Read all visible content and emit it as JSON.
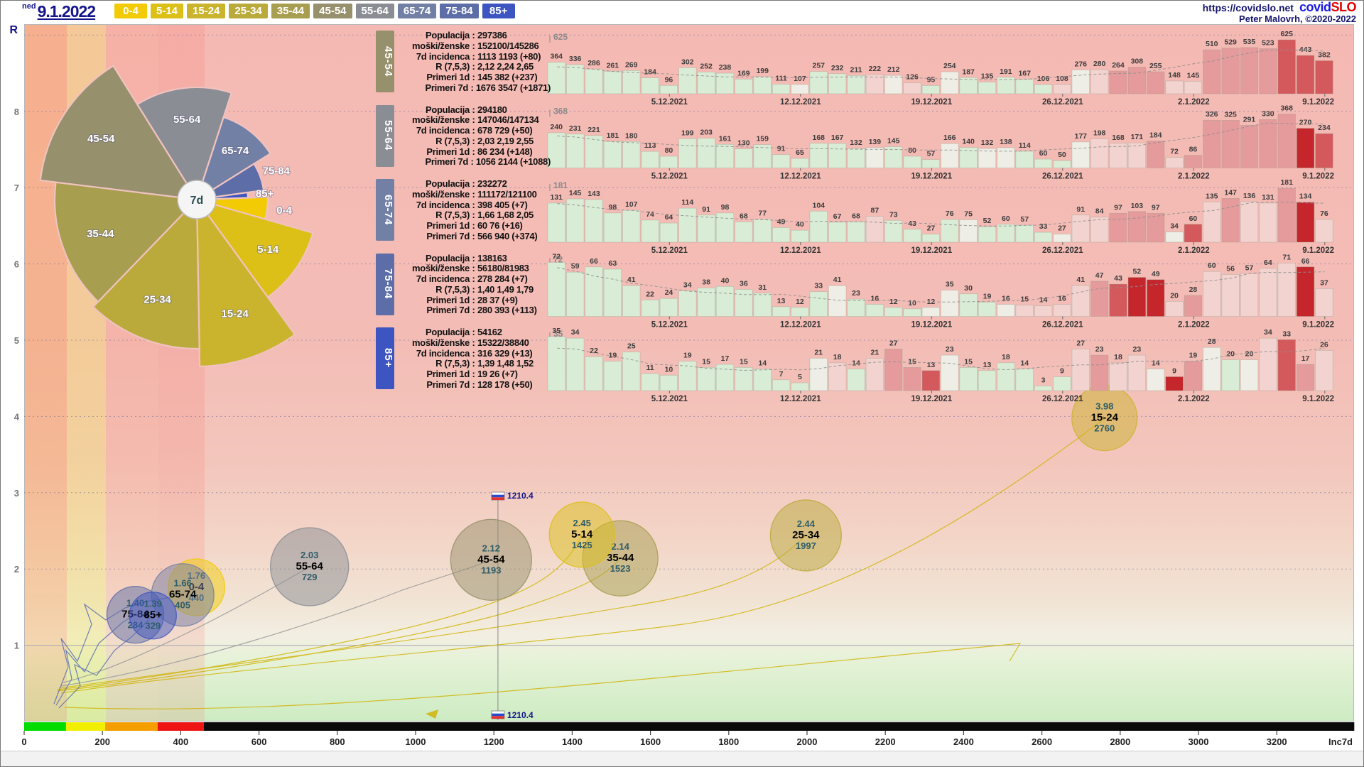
{
  "header": {
    "day_abbrev": "ned",
    "date": "9.1.2022",
    "url": "https://covidslo.net",
    "logo_covid": "covid",
    "logo_slo": "SLO",
    "credit": "Peter Malovrh, ©2020-2022",
    "age_buttons": [
      {
        "label": "0-4",
        "color": "#F2CB05"
      },
      {
        "label": "5-14",
        "color": "#DCBF17"
      },
      {
        "label": "15-24",
        "color": "#CBB42D"
      },
      {
        "label": "25-34",
        "color": "#BAAA3C"
      },
      {
        "label": "35-44",
        "color": "#A89E4F"
      },
      {
        "label": "45-54",
        "color": "#97906C"
      },
      {
        "label": "55-64",
        "color": "#8A8D94"
      },
      {
        "label": "65-74",
        "color": "#7380A5"
      },
      {
        "label": "75-84",
        "color": "#5D6DA8"
      },
      {
        "label": "85+",
        "color": "#3D55C0"
      }
    ]
  },
  "axes": {
    "y_label": "R",
    "y_ticks": [
      8,
      7,
      6,
      5,
      4,
      3,
      2,
      1
    ],
    "x_ticks": [
      0,
      200,
      400,
      600,
      800,
      1000,
      1200,
      1400,
      1600,
      1800,
      2000,
      2200,
      2400,
      2600,
      2800,
      3000,
      3200
    ],
    "x_label": "Inc7d",
    "risk_bar": [
      {
        "color": "#00DB00",
        "to": 107
      },
      {
        "color": "#F2EE00",
        "to": 207
      },
      {
        "color": "#F59E00",
        "to": 341
      },
      {
        "color": "#EE1414",
        "to": 459
      },
      {
        "color": "#0A0A0A",
        "to": 3398
      }
    ]
  },
  "stats_labels": {
    "populacija": "Populacija",
    "moski": "moški/ženske",
    "incidenca": "7d incidenca",
    "r": "R (7,5,3)",
    "primeri1d": "Primeri 1d",
    "primeri7d": "Primeri 7d"
  },
  "panels": [
    {
      "group": "45-54",
      "color": "#97906C",
      "populacija": "297386",
      "moski": "152100/145286",
      "incidenca": "1113 1193 (+80)",
      "r": "2,12 2,24 2,65",
      "primeri1d": "145 382 (+237)",
      "primeri7d": "1676 3547 (+1871)"
    },
    {
      "group": "55-64",
      "color": "#8A8D94",
      "populacija": "294180",
      "moski": "147046/147134",
      "incidenca": "678 729 (+50)",
      "r": "2,03 2,19 2,55",
      "primeri1d": "86 234 (+148)",
      "primeri7d": "1056 2144 (+1088)"
    },
    {
      "group": "65-74",
      "color": "#7380A5",
      "populacija": "232272",
      "moski": "111172/121100",
      "incidenca": "398 405 (+7)",
      "r": "1,66 1,68 2,05",
      "primeri1d": "60 76 (+16)",
      "primeri7d": "566 940 (+374)"
    },
    {
      "group": "75-84",
      "color": "#5D6DA8",
      "populacija": "138163",
      "moski": "56180/81983",
      "incidenca": "278 284 (+7)",
      "r": "1,40 1,49 1,79",
      "primeri1d": "28 37 (+9)",
      "primeri7d": "280 393 (+113)"
    },
    {
      "group": "85+",
      "color": "#3D55C0",
      "populacija": "54162",
      "moski": "15322/38840",
      "incidenca": "316 329 (+13)",
      "r": "1,39 1,48 1,52",
      "primeri1d": "19 26 (+7)",
      "primeri7d": "128 178 (+50)"
    }
  ],
  "chart_data": {
    "bar_charts": [
      {
        "type": "bar",
        "group": "45-54",
        "max": 625,
        "dates": [
          "5.12.2021",
          "12.12.2021",
          "19.12.2021",
          "26.12.2021",
          "2.1.2022",
          "9.1.2022"
        ],
        "date_indices": [
          6,
          13,
          20,
          27,
          34,
          41
        ],
        "values": [
          364,
          336,
          286,
          261,
          269,
          184,
          96,
          302,
          252,
          238,
          169,
          199,
          111,
          107,
          257,
          232,
          211,
          222,
          212,
          126,
          95,
          254,
          187,
          135,
          191,
          167,
          106,
          108,
          276,
          280,
          264,
          308,
          255,
          148,
          145,
          510,
          529,
          535,
          523,
          625,
          443,
          382
        ]
      },
      {
        "type": "bar",
        "group": "55-64",
        "max": 368,
        "dates": [
          "5.12.2021",
          "12.12.2021",
          "19.12.2021",
          "26.12.2021",
          "2.1.2022",
          "9.1.2022"
        ],
        "date_indices": [
          6,
          13,
          20,
          27,
          34,
          41
        ],
        "values": [
          240,
          231,
          221,
          181,
          180,
          113,
          80,
          199,
          203,
          161,
          130,
          159,
          91,
          65,
          168,
          167,
          132,
          139,
          145,
          80,
          57,
          166,
          140,
          132,
          138,
          114,
          60,
          50,
          177,
          198,
          168,
          171,
          184,
          72,
          86,
          326,
          325,
          291,
          330,
          368,
          270,
          234
        ]
      },
      {
        "type": "bar",
        "group": "65-74",
        "max": 181,
        "dates": [
          "5.12.2021",
          "12.12.2021",
          "19.12.2021",
          "26.12.2021",
          "2.1.2022",
          "9.1.2022"
        ],
        "date_indices": [
          6,
          13,
          20,
          27,
          34,
          41
        ],
        "values": [
          131,
          145,
          143,
          98,
          107,
          74,
          64,
          114,
          91,
          98,
          68,
          77,
          49,
          40,
          104,
          67,
          68,
          87,
          73,
          43,
          27,
          76,
          75,
          52,
          60,
          57,
          33,
          27,
          91,
          84,
          97,
          103,
          97,
          34,
          60,
          135,
          147,
          136,
          131,
          181,
          134,
          76
        ]
      },
      {
        "type": "bar",
        "group": "75-84",
        "max": 72,
        "dates": [
          "5.12.2021",
          "12.12.2021",
          "19.12.2021",
          "26.12.2021",
          "2.1.2022",
          "9.1.2022"
        ],
        "date_indices": [
          6,
          13,
          20,
          27,
          34,
          41
        ],
        "values": [
          72,
          59,
          66,
          63,
          41,
          22,
          24,
          34,
          38,
          40,
          36,
          31,
          13,
          12,
          33,
          41,
          23,
          16,
          12,
          10,
          12,
          35,
          30,
          19,
          16,
          15,
          14,
          16,
          41,
          47,
          43,
          52,
          49,
          20,
          28,
          60,
          56,
          57,
          64,
          71,
          66,
          37
        ]
      },
      {
        "type": "bar",
        "group": "85+",
        "max": 35,
        "dates": [
          "5.12.2021",
          "12.12.2021",
          "19.12.2021",
          "26.12.2021",
          "2.1.2022",
          "9.1.2022"
        ],
        "date_indices": [
          6,
          13,
          20,
          27,
          34,
          41
        ],
        "values": [
          35,
          34,
          22,
          19,
          25,
          11,
          10,
          19,
          15,
          17,
          15,
          14,
          7,
          5,
          21,
          18,
          14,
          21,
          27,
          15,
          13,
          23,
          15,
          13,
          18,
          14,
          3,
          9,
          27,
          23,
          18,
          23,
          14,
          9,
          19,
          28,
          20,
          20,
          34,
          33,
          17,
          26
        ]
      }
    ],
    "rose": {
      "type": "pie",
      "center_label": "7d",
      "slices": [
        {
          "group": "0-4",
          "a0": -2,
          "a1": 16,
          "radius": 100
        },
        {
          "group": "5-14",
          "a0": 16,
          "a1": 54,
          "radius": 170
        },
        {
          "group": "15-24",
          "a0": 54,
          "a1": 89,
          "radius": 235
        },
        {
          "group": "25-34",
          "a0": 89,
          "a1": 134,
          "radius": 210
        },
        {
          "group": "35-44",
          "a0": 134,
          "a1": 187,
          "radius": 200
        },
        {
          "group": "45-54",
          "a0": 187,
          "a1": 238,
          "radius": 222
        },
        {
          "group": "55-64",
          "a0": 238,
          "a1": 288,
          "radius": 158
        },
        {
          "group": "65-74",
          "a0": 288,
          "a1": 328,
          "radius": 122
        },
        {
          "group": "75-84",
          "a0": 328,
          "a1": 352,
          "radius": 95
        },
        {
          "group": "85+",
          "a0": 352,
          "a1": 358,
          "radius": 72
        }
      ]
    },
    "scatter": {
      "type": "scatter",
      "xlabel": "Inc7d",
      "ylabel": "R",
      "xlim": [
        0,
        3400
      ],
      "ylim": [
        0,
        9.1
      ],
      "bubbles": [
        {
          "group": "35-44",
          "r_label": "2.14",
          "inc_label": "1523",
          "R": 2.14,
          "incidence": 1523,
          "radius": 53
        },
        {
          "group": "25-34",
          "r_label": "2.44",
          "inc_label": "1997",
          "R": 2.44,
          "incidence": 1997,
          "radius": 50
        },
        {
          "group": "15-24",
          "r_label": "3.98",
          "inc_label": "2760",
          "R": 3.98,
          "incidence": 2760,
          "radius": 46
        },
        {
          "group": "5-14",
          "r_label": "2.45",
          "inc_label": "1425",
          "R": 2.45,
          "incidence": 1425,
          "radius": 46
        },
        {
          "group": "55-64",
          "r_label": "2.03",
          "inc_label": "729",
          "R": 2.03,
          "incidence": 729,
          "radius": 55
        },
        {
          "group": "45-54",
          "r_label": "2.12",
          "inc_label": "1193",
          "R": 2.12,
          "incidence": 1193,
          "radius": 57
        },
        {
          "group": "0-4",
          "r_label": "1.76",
          "inc_label": "440",
          "R": 1.76,
          "incidence": 440,
          "radius": 40
        },
        {
          "group": "65-74",
          "r_label": "1.66",
          "inc_label": "405",
          "R": 1.66,
          "incidence": 405,
          "radius": 44
        },
        {
          "group": "75-84",
          "r_label": "1.40",
          "inc_label": "284",
          "R": 1.4,
          "incidence": 284,
          "radius": 40
        },
        {
          "group": "85+",
          "r_label": "1.39",
          "inc_label": "329",
          "R": 1.39,
          "incidence": 329,
          "radius": 33
        }
      ],
      "country_marker": {
        "label": "1210.4",
        "incidence": 1210.4
      }
    }
  }
}
